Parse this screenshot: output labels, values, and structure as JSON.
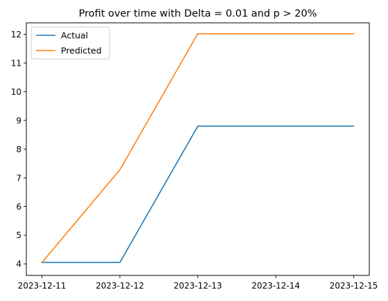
{
  "chart_data": {
    "type": "line",
    "title": "Profit over time with Delta = 0.01 and p > 20%",
    "xlabel": "",
    "ylabel": "",
    "x": [
      "2023-12-11",
      "2023-12-12",
      "2023-12-13",
      "2023-12-14",
      "2023-12-15"
    ],
    "x_ticks": [
      "2023-12-11",
      "2023-12-12",
      "2023-12-13",
      "2023-12-14",
      "2023-12-15"
    ],
    "y_ticks": [
      4,
      5,
      6,
      7,
      8,
      9,
      10,
      11,
      12
    ],
    "ylim": [
      3.6,
      12.4
    ],
    "grid": false,
    "legend_position": "top-left",
    "series": [
      {
        "name": "Actual",
        "color": "#1f77b4",
        "values": [
          4.05,
          4.05,
          8.8,
          8.8,
          8.8
        ]
      },
      {
        "name": "Predicted",
        "color": "#ff7f0e",
        "values": [
          4.05,
          7.28,
          12.02,
          12.02,
          12.02
        ]
      }
    ]
  }
}
